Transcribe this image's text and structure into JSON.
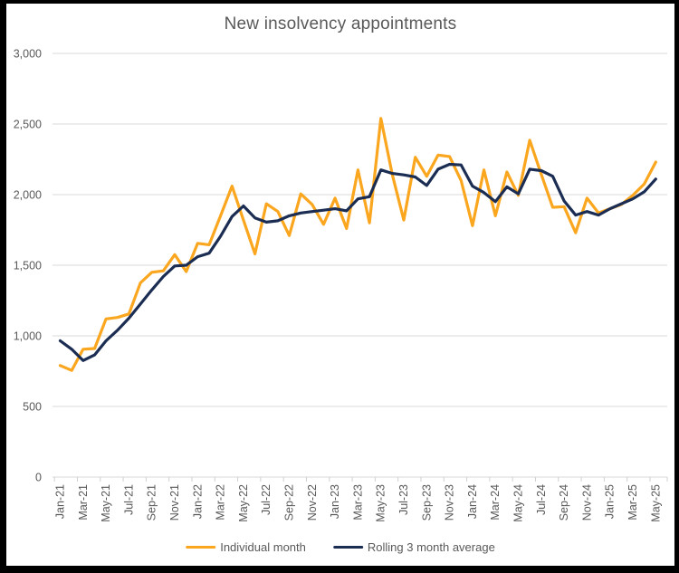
{
  "chart_title": "New insolvency appointments",
  "colors": {
    "background": "#ffffff",
    "frame_border": "#000000",
    "gridline": "#d9d9d9",
    "axis_tick": "#d0d0d0",
    "text": "#595959",
    "individual_month": "#faa61e",
    "rolling_average": "#1b2d52"
  },
  "chart_data": {
    "type": "line",
    "title": "New insolvency appointments",
    "xlabel": "",
    "ylabel": "",
    "ylim": [
      0,
      3000
    ],
    "yticks": [
      0,
      500,
      1000,
      1500,
      2000,
      2500,
      3000
    ],
    "ytick_labels": [
      "0",
      "500",
      "1,000",
      "1,500",
      "2,000",
      "2,500",
      "3,000"
    ],
    "x_label_every": 2,
    "grid": true,
    "legend_position": "bottom",
    "x": [
      "Jan-21",
      "Feb-21",
      "Mar-21",
      "Apr-21",
      "May-21",
      "Jun-21",
      "Jul-21",
      "Aug-21",
      "Sep-21",
      "Oct-21",
      "Nov-21",
      "Dec-21",
      "Jan-22",
      "Feb-22",
      "Mar-22",
      "Apr-22",
      "May-22",
      "Jun-22",
      "Jul-22",
      "Aug-22",
      "Sep-22",
      "Oct-22",
      "Nov-22",
      "Dec-22",
      "Jan-23",
      "Feb-23",
      "Mar-23",
      "Apr-23",
      "May-23",
      "Jun-23",
      "Jul-23",
      "Aug-23",
      "Sep-23",
      "Oct-23",
      "Nov-23",
      "Dec-23",
      "Jan-24",
      "Feb-24",
      "Mar-24",
      "Apr-24",
      "May-24",
      "Jun-24",
      "Jul-24",
      "Aug-24",
      "Sep-24",
      "Oct-24",
      "Nov-24",
      "Dec-24",
      "Jan-25",
      "Feb-25",
      "Mar-25",
      "Apr-25",
      "May-25"
    ],
    "series": [
      {
        "name": "Individual month",
        "color": "#faa61e",
        "values": [
          790,
          755,
          905,
          910,
          1120,
          1130,
          1155,
          1375,
          1450,
          1460,
          1575,
          1455,
          1655,
          1645,
          1850,
          2060,
          1820,
          1580,
          1935,
          1880,
          1710,
          2005,
          1930,
          1790,
          1975,
          1760,
          2175,
          1800,
          2540,
          2140,
          1820,
          2265,
          2130,
          2280,
          2270,
          2100,
          1780,
          2175,
          1850,
          2160,
          1995,
          2385,
          2145,
          1910,
          1915,
          1730,
          1975,
          1870,
          1900,
          1930,
          1995,
          2075,
          2230
        ]
      },
      {
        "name": "Rolling 3 month average",
        "color": "#1b2d52",
        "values": [
          965,
          905,
          825,
          865,
          965,
          1040,
          1125,
          1225,
          1325,
          1420,
          1495,
          1500,
          1560,
          1585,
          1705,
          1845,
          1920,
          1835,
          1805,
          1815,
          1850,
          1870,
          1880,
          1890,
          1900,
          1885,
          1970,
          1985,
          2175,
          2150,
          2140,
          2125,
          2065,
          2180,
          2215,
          2210,
          2060,
          2015,
          1950,
          2055,
          2005,
          2180,
          2170,
          2130,
          1955,
          1855,
          1880,
          1855,
          1900,
          1935,
          1970,
          2020,
          2110
        ]
      }
    ]
  }
}
